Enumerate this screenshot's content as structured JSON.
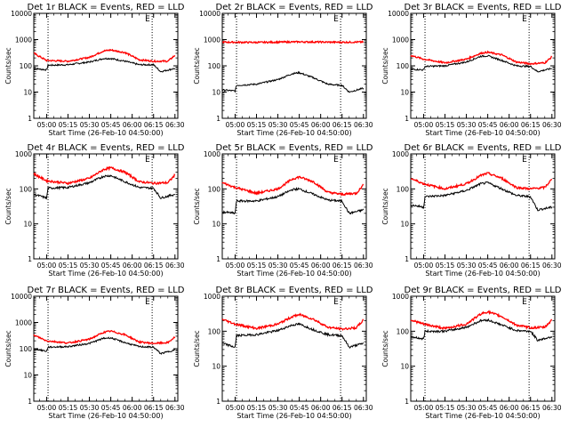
{
  "figure": {
    "colors": {
      "events": "#000000",
      "lld": "#ff0000",
      "axes": "#000000",
      "background": "#ffffff"
    },
    "ylabel": "Counts/sec",
    "xlabel": "Start Time (26-Feb-10 04:50:00)",
    "flag_label": "E",
    "y_scale": "log"
  },
  "chart_data": [
    {
      "type": "line",
      "title": "Det 1r BLACK = Events, RED = LLD",
      "xlabel": "Start Time (26-Feb-10 04:50:00)",
      "ylabel": "Counts/sec",
      "x_tick_labels": [
        "05:00",
        "05:15",
        "05:30",
        "05:45",
        "06:00",
        "06:15",
        "06:30"
      ],
      "y_tick_labels": [
        "1",
        "10",
        "100",
        "1000",
        "10000"
      ],
      "ylim": [
        1,
        10000
      ],
      "xlim": [
        "04:51",
        "06:32"
      ],
      "attenuator_marks": [
        "05:01",
        "06:14"
      ],
      "series": [
        {
          "name": "Events",
          "color": "#000000",
          "x": [
            "04:51",
            "05:00",
            "05:01",
            "05:15",
            "05:30",
            "05:40",
            "05:45",
            "05:55",
            "06:05",
            "06:14",
            "06:15",
            "06:20",
            "06:30"
          ],
          "y": [
            80,
            70,
            105,
            110,
            140,
            190,
            190,
            150,
            110,
            110,
            110,
            60,
            80
          ]
        },
        {
          "name": "LLD",
          "color": "#ff0000",
          "x": [
            "04:51",
            "05:00",
            "05:15",
            "05:30",
            "05:40",
            "05:45",
            "05:55",
            "06:05",
            "06:15",
            "06:25",
            "06:30"
          ],
          "y": [
            300,
            160,
            150,
            210,
            370,
            400,
            320,
            170,
            150,
            150,
            250
          ]
        }
      ]
    },
    {
      "type": "line",
      "title": "Det 2r BLACK = Events, RED = LLD",
      "xlabel": "Start Time (26-Feb-10 04:50:00)",
      "ylabel": "Counts/sec",
      "x_tick_labels": [
        "05:00",
        "05:15",
        "05:30",
        "05:45",
        "06:00",
        "06:15",
        "06:30"
      ],
      "y_tick_labels": [
        "1",
        "10",
        "100",
        "1000",
        "10000"
      ],
      "ylim": [
        1,
        10000
      ],
      "xlim": [
        "04:51",
        "06:32"
      ],
      "attenuator_marks": [
        "05:01",
        "06:14"
      ],
      "series": [
        {
          "name": "Events",
          "color": "#000000",
          "x": [
            "04:51",
            "05:00",
            "05:01",
            "05:15",
            "05:30",
            "05:40",
            "05:45",
            "05:55",
            "06:05",
            "06:14",
            "06:15",
            "06:20",
            "06:30"
          ],
          "y": [
            12,
            11,
            18,
            20,
            30,
            50,
            55,
            35,
            20,
            18,
            18,
            10,
            14
          ]
        },
        {
          "name": "LLD",
          "color": "#ff0000",
          "x": [
            "04:51",
            "05:15",
            "05:45",
            "06:15",
            "06:30"
          ],
          "y": [
            800,
            780,
            820,
            790,
            810
          ]
        }
      ]
    },
    {
      "type": "line",
      "title": "Det 3r BLACK = Events, RED = LLD",
      "xlabel": "Start Time (26-Feb-10 04:50:00)",
      "ylabel": "Counts/sec",
      "x_tick_labels": [
        "05:00",
        "05:15",
        "05:30",
        "05:45",
        "06:00",
        "06:15",
        "06:30"
      ],
      "y_tick_labels": [
        "1",
        "10",
        "100",
        "1000",
        "10000"
      ],
      "ylim": [
        1,
        10000
      ],
      "xlim": [
        "04:51",
        "06:32"
      ],
      "attenuator_marks": [
        "05:01",
        "06:14"
      ],
      "series": [
        {
          "name": "Events",
          "color": "#000000",
          "x": [
            "04:51",
            "05:00",
            "05:01",
            "05:15",
            "05:30",
            "05:40",
            "05:45",
            "05:55",
            "06:05",
            "06:14",
            "06:15",
            "06:20",
            "06:30"
          ],
          "y": [
            75,
            70,
            95,
            100,
            140,
            230,
            240,
            160,
            100,
            95,
            95,
            60,
            80
          ]
        },
        {
          "name": "LLD",
          "color": "#ff0000",
          "x": [
            "04:51",
            "05:00",
            "05:15",
            "05:30",
            "05:40",
            "05:45",
            "05:55",
            "06:05",
            "06:15",
            "06:25",
            "06:30"
          ],
          "y": [
            250,
            180,
            130,
            180,
            300,
            330,
            260,
            140,
            120,
            130,
            220
          ]
        }
      ]
    },
    {
      "type": "line",
      "title": "Det 4r BLACK = Events, RED = LLD",
      "xlabel": "Start Time (26-Feb-10 04:50:00)",
      "ylabel": "Counts/sec",
      "x_tick_labels": [
        "05:00",
        "05:15",
        "05:30",
        "05:45",
        "06:00",
        "06:15",
        "06:30"
      ],
      "y_tick_labels": [
        "1",
        "10",
        "100",
        "1000"
      ],
      "ylim": [
        1,
        1000
      ],
      "xlim": [
        "04:51",
        "06:32"
      ],
      "attenuator_marks": [
        "05:01",
        "06:14"
      ],
      "series": [
        {
          "name": "Events",
          "color": "#000000",
          "x": [
            "04:51",
            "05:00",
            "05:01",
            "05:15",
            "05:30",
            "05:40",
            "05:45",
            "05:55",
            "06:05",
            "06:14",
            "06:15",
            "06:20",
            "06:30"
          ],
          "y": [
            70,
            55,
            105,
            110,
            150,
            230,
            240,
            160,
            110,
            105,
            105,
            55,
            70
          ]
        },
        {
          "name": "LLD",
          "color": "#ff0000",
          "x": [
            "04:51",
            "05:00",
            "05:15",
            "05:30",
            "05:40",
            "05:45",
            "05:55",
            "06:05",
            "06:15",
            "06:25",
            "06:30"
          ],
          "y": [
            270,
            170,
            145,
            200,
            360,
            400,
            300,
            160,
            145,
            150,
            250
          ]
        }
      ]
    },
    {
      "type": "line",
      "title": "Det 5r BLACK = Events, RED = LLD",
      "xlabel": "Start Time (26-Feb-10 04:50:00)",
      "ylabel": "Counts/sec",
      "x_tick_labels": [
        "05:00",
        "05:15",
        "05:30",
        "05:45",
        "06:00",
        "06:15",
        "06:30"
      ],
      "y_tick_labels": [
        "1",
        "10",
        "100",
        "1000"
      ],
      "ylim": [
        1,
        1000
      ],
      "xlim": [
        "04:51",
        "06:32"
      ],
      "attenuator_marks": [
        "05:01",
        "06:14"
      ],
      "series": [
        {
          "name": "Events",
          "color": "#000000",
          "x": [
            "04:51",
            "05:00",
            "05:01",
            "05:15",
            "05:30",
            "05:40",
            "05:45",
            "05:55",
            "06:05",
            "06:14",
            "06:15",
            "06:20",
            "06:30"
          ],
          "y": [
            22,
            20,
            45,
            45,
            60,
            95,
            100,
            70,
            48,
            45,
            45,
            20,
            25
          ]
        },
        {
          "name": "LLD",
          "color": "#ff0000",
          "x": [
            "04:51",
            "05:00",
            "05:15",
            "05:30",
            "05:40",
            "05:45",
            "05:55",
            "06:05",
            "06:15",
            "06:25",
            "06:30"
          ],
          "y": [
            150,
            110,
            75,
            100,
            190,
            220,
            160,
            80,
            70,
            75,
            130
          ]
        }
      ]
    },
    {
      "type": "line",
      "title": "Det 6r BLACK = Events, RED = LLD",
      "xlabel": "Start Time (26-Feb-10 04:50:00)",
      "ylabel": "Counts/sec",
      "x_tick_labels": [
        "05:00",
        "05:15",
        "05:30",
        "05:45",
        "06:00",
        "06:15",
        "06:30"
      ],
      "y_tick_labels": [
        "1",
        "10",
        "100",
        "1000"
      ],
      "ylim": [
        1,
        1000
      ],
      "xlim": [
        "04:51",
        "06:32"
      ],
      "attenuator_marks": [
        "05:01",
        "06:14"
      ],
      "series": [
        {
          "name": "Events",
          "color": "#000000",
          "x": [
            "04:51",
            "05:00",
            "05:01",
            "05:15",
            "05:30",
            "05:40",
            "05:45",
            "05:55",
            "06:05",
            "06:14",
            "06:15",
            "06:20",
            "06:30"
          ],
          "y": [
            35,
            30,
            60,
            65,
            90,
            140,
            150,
            100,
            65,
            60,
            60,
            25,
            30
          ]
        },
        {
          "name": "LLD",
          "color": "#ff0000",
          "x": [
            "04:51",
            "05:00",
            "05:15",
            "05:30",
            "05:40",
            "05:45",
            "05:55",
            "06:05",
            "06:15",
            "06:25",
            "06:30"
          ],
          "y": [
            200,
            140,
            100,
            140,
            240,
            280,
            200,
            110,
            100,
            110,
            190
          ]
        }
      ]
    },
    {
      "type": "line",
      "title": "Det 7r BLACK = Events, RED = LLD",
      "xlabel": "Start Time (26-Feb-10 04:50:00)",
      "ylabel": "Counts/sec",
      "x_tick_labels": [
        "05:00",
        "05:15",
        "05:30",
        "05:45",
        "06:00",
        "06:15",
        "06:30"
      ],
      "y_tick_labels": [
        "1",
        "10",
        "100",
        "1000",
        "10000"
      ],
      "ylim": [
        1,
        10000
      ],
      "xlim": [
        "04:51",
        "06:32"
      ],
      "attenuator_marks": [
        "05:01",
        "06:14"
      ],
      "series": [
        {
          "name": "Events",
          "color": "#000000",
          "x": [
            "04:51",
            "05:00",
            "05:01",
            "05:15",
            "05:30",
            "05:40",
            "05:45",
            "05:55",
            "06:05",
            "06:14",
            "06:15",
            "06:20",
            "06:30"
          ],
          "y": [
            100,
            80,
            115,
            120,
            160,
            250,
            260,
            170,
            120,
            115,
            115,
            65,
            90
          ]
        },
        {
          "name": "LLD",
          "color": "#ff0000",
          "x": [
            "04:51",
            "05:00",
            "05:15",
            "05:30",
            "05:40",
            "05:45",
            "05:55",
            "06:05",
            "06:15",
            "06:25",
            "06:30"
          ],
          "y": [
            330,
            200,
            165,
            230,
            420,
            470,
            340,
            180,
            160,
            170,
            280
          ]
        }
      ]
    },
    {
      "type": "line",
      "title": "Det 8r BLACK = Events, RED = LLD",
      "xlabel": "Start Time (26-Feb-10 04:50:00)",
      "ylabel": "Counts/sec",
      "x_tick_labels": [
        "05:00",
        "05:15",
        "05:30",
        "05:45",
        "06:00",
        "06:15",
        "06:30"
      ],
      "y_tick_labels": [
        "1",
        "10",
        "100",
        "1000"
      ],
      "ylim": [
        1,
        1000
      ],
      "xlim": [
        "04:51",
        "06:32"
      ],
      "attenuator_marks": [
        "05:01",
        "06:14"
      ],
      "series": [
        {
          "name": "Events",
          "color": "#000000",
          "x": [
            "04:51",
            "05:00",
            "05:01",
            "05:15",
            "05:30",
            "05:40",
            "05:45",
            "05:55",
            "06:05",
            "06:14",
            "06:15",
            "06:20",
            "06:30"
          ],
          "y": [
            45,
            35,
            75,
            80,
            105,
            150,
            160,
            110,
            80,
            75,
            75,
            35,
            45
          ]
        },
        {
          "name": "LLD",
          "color": "#ff0000",
          "x": [
            "04:51",
            "05:00",
            "05:15",
            "05:30",
            "05:40",
            "05:45",
            "05:55",
            "06:05",
            "06:15",
            "06:25",
            "06:30"
          ],
          "y": [
            220,
            160,
            120,
            160,
            260,
            300,
            220,
            130,
            115,
            125,
            210
          ]
        }
      ]
    },
    {
      "type": "line",
      "title": "Det 9r BLACK = Events, RED = LLD",
      "xlabel": "Start Time (26-Feb-10 04:50:00)",
      "ylabel": "Counts/sec",
      "x_tick_labels": [
        "05:00",
        "05:15",
        "05:30",
        "05:45",
        "06:00",
        "06:15",
        "06:30"
      ],
      "y_tick_labels": [
        "1",
        "10",
        "100",
        "1000"
      ],
      "ylim": [
        1,
        1000
      ],
      "xlim": [
        "04:51",
        "06:32"
      ],
      "attenuator_marks": [
        "05:01",
        "06:14"
      ],
      "series": [
        {
          "name": "Events",
          "color": "#000000",
          "x": [
            "04:51",
            "05:00",
            "05:01",
            "05:15",
            "05:30",
            "05:40",
            "05:45",
            "05:55",
            "06:05",
            "06:14",
            "06:15",
            "06:20",
            "06:30"
          ],
          "y": [
            70,
            60,
            100,
            100,
            130,
            200,
            210,
            150,
            105,
            100,
            100,
            55,
            70
          ]
        },
        {
          "name": "LLD",
          "color": "#ff0000",
          "x": [
            "04:51",
            "05:00",
            "05:15",
            "05:30",
            "05:40",
            "05:45",
            "05:55",
            "06:05",
            "06:15",
            "06:25",
            "06:30"
          ],
          "y": [
            210,
            160,
            120,
            160,
            310,
            360,
            260,
            150,
            125,
            130,
            210
          ]
        }
      ]
    }
  ]
}
